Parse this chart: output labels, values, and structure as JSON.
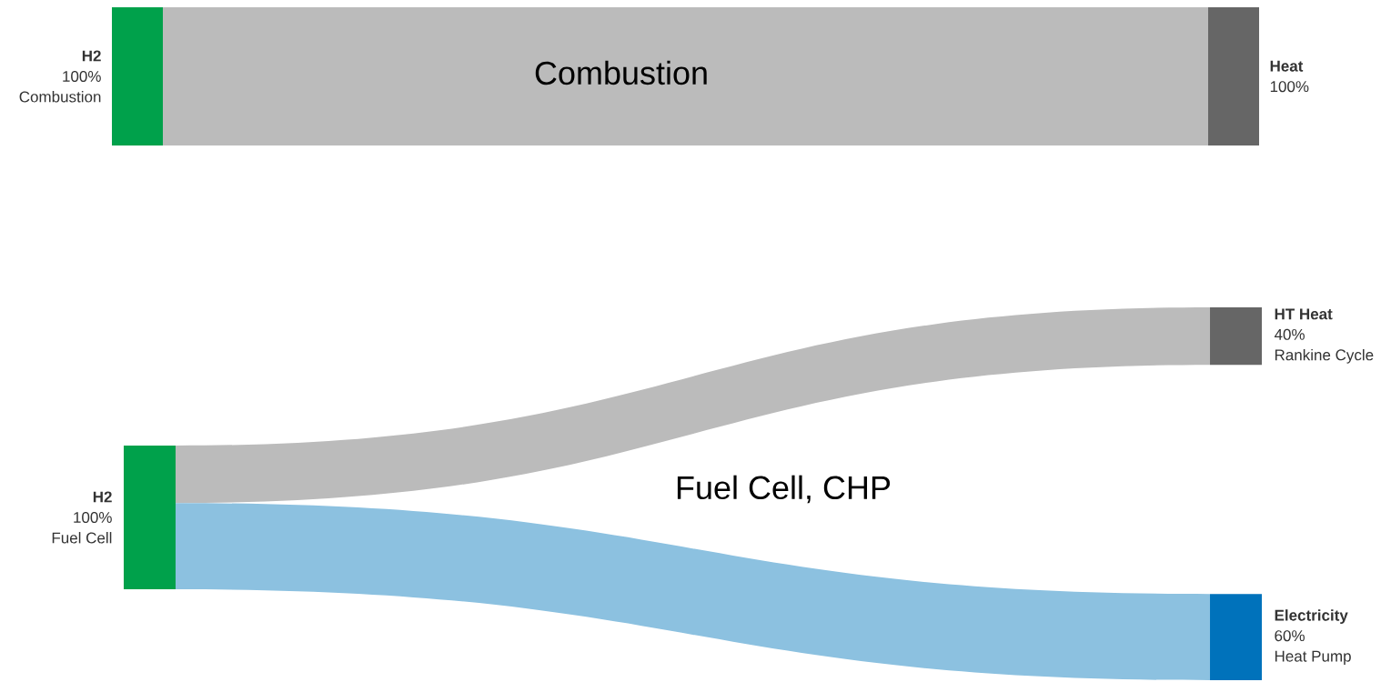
{
  "chart_data": [
    {
      "type": "other",
      "title": "Combustion",
      "categories": [
        "H2",
        "Heat"
      ],
      "values": [
        100,
        null
      ],
      "value_labels": [
        "100%",
        null
      ],
      "colors": [
        "#00a14b",
        "#666666"
      ],
      "series": [
        {
          "color": "#bbbbbb",
          "values": [
            null,
            100
          ],
          "value_labels": [
            null,
            "100%"
          ]
        }
      ],
      "annotations": [
        "Combustion"
      ]
    },
    {
      "type": "other",
      "title": "Fuel Cell, CHP",
      "categories": [
        "H2",
        "HT Heat",
        "Electricity"
      ],
      "values": [
        100,
        null,
        null
      ],
      "value_labels": [
        "100%",
        null,
        null
      ],
      "colors": [
        "#00a14b",
        "#666666",
        "#0072bb"
      ],
      "series": [
        {
          "color": "#bbbbbb",
          "values": [
            null,
            40,
            null
          ],
          "value_labels": [
            null,
            "40%",
            null
          ]
        },
        {
          "color": "#8cc1e0",
          "values": [
            null,
            null,
            60
          ],
          "value_labels": [
            null,
            null,
            "60%"
          ]
        }
      ],
      "annotations": [
        "Fuel Cell",
        "Rankine Cycle",
        "Heat Pump"
      ]
    }
  ]
}
